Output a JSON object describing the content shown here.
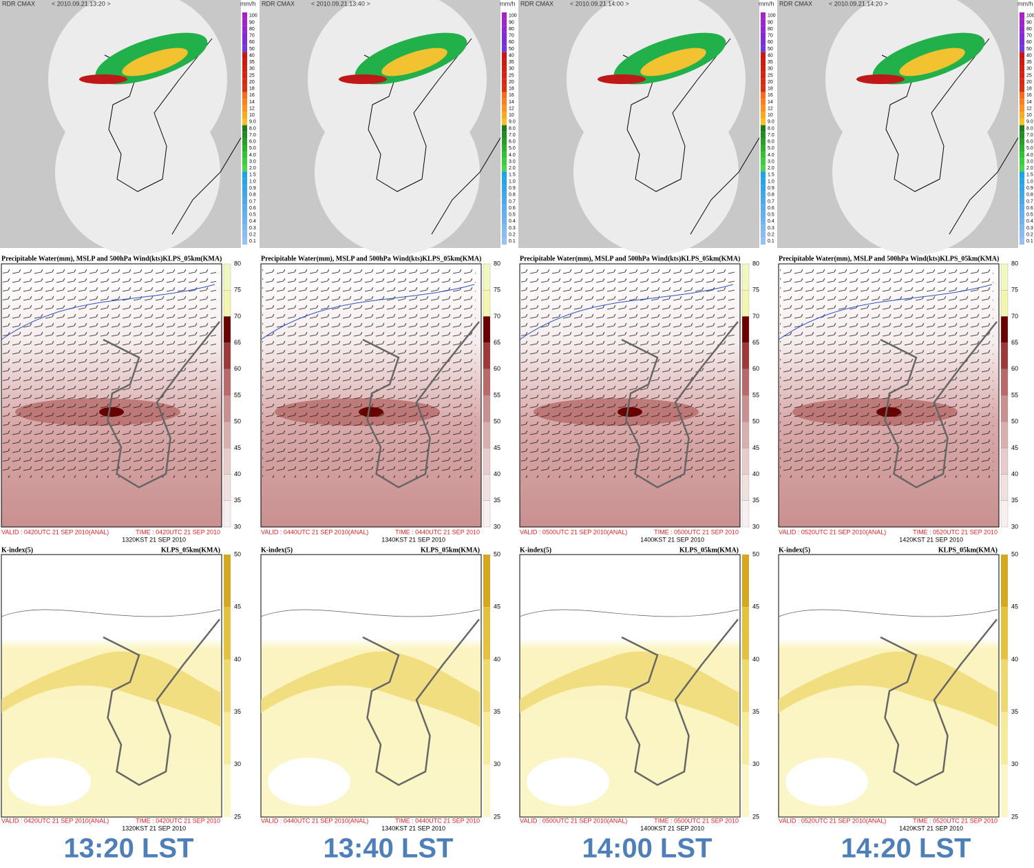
{
  "radar": {
    "product": "RDR  CMAX",
    "unit": "mm/h",
    "scale": [
      "100",
      "90",
      "80",
      "70",
      "60",
      "50",
      "40",
      "35",
      "30",
      "25",
      "20",
      "18",
      "16",
      "14",
      "12",
      "10",
      "9.0",
      "8.0",
      "7.0",
      "6.0",
      "5.0",
      "4.0",
      "3.0",
      "2.0",
      "1.5",
      "1.0",
      "0.9",
      "0.8",
      "0.7",
      "0.6",
      "0.5",
      "0.4",
      "0.3",
      "0.2",
      "0.1"
    ],
    "panels": [
      {
        "time": "< 2010.09.21.13:20 >"
      },
      {
        "time": "< 2010.09.21.13:40 >"
      },
      {
        "time": "< 2010.09.21.14:00 >"
      },
      {
        "time": "< 2010.09.21.14:20 >"
      }
    ]
  },
  "pw": {
    "title": "Precipitable Water(mm), MSLP and 500hPa Wind(kts)KLPS_05km(KMA)",
    "scale": [
      "80",
      "75",
      "70",
      "65",
      "60",
      "55",
      "50",
      "45",
      "40",
      "35",
      "30"
    ]
  },
  "kindex": {
    "title": "K-index(5)",
    "model": "KLPS_05km(KMA)",
    "scale": [
      "50",
      "45",
      "40",
      "35",
      "30",
      "25"
    ]
  },
  "panels": [
    {
      "valid": "VALID : 0420UTC 21 SEP 2010(ANAL)",
      "time": "TIME : 0420UTC 21 SEP 2010",
      "kst": "1320KST 21 SEP 2010",
      "label": "13:20 LST"
    },
    {
      "valid": "VALID : 0440UTC 21 SEP 2010(ANAL)",
      "time": "TIME : 0440UTC 21 SEP 2010",
      "kst": "1340KST 21 SEP 2010",
      "label": "13:40 LST"
    },
    {
      "valid": "VALID : 0500UTC 21 SEP 2010(ANAL)",
      "time": "TIME : 0500UTC 21 SEP 2010",
      "kst": "1400KST 21 SEP 2010",
      "label": "14:00 LST"
    },
    {
      "valid": "VALID : 0520UTC 21 SEP 2010(ANAL)",
      "time": "TIME : 0520UTC 21 SEP 2010",
      "kst": "1420KST 21 SEP 2010",
      "label": "14:20 LST"
    }
  ]
}
